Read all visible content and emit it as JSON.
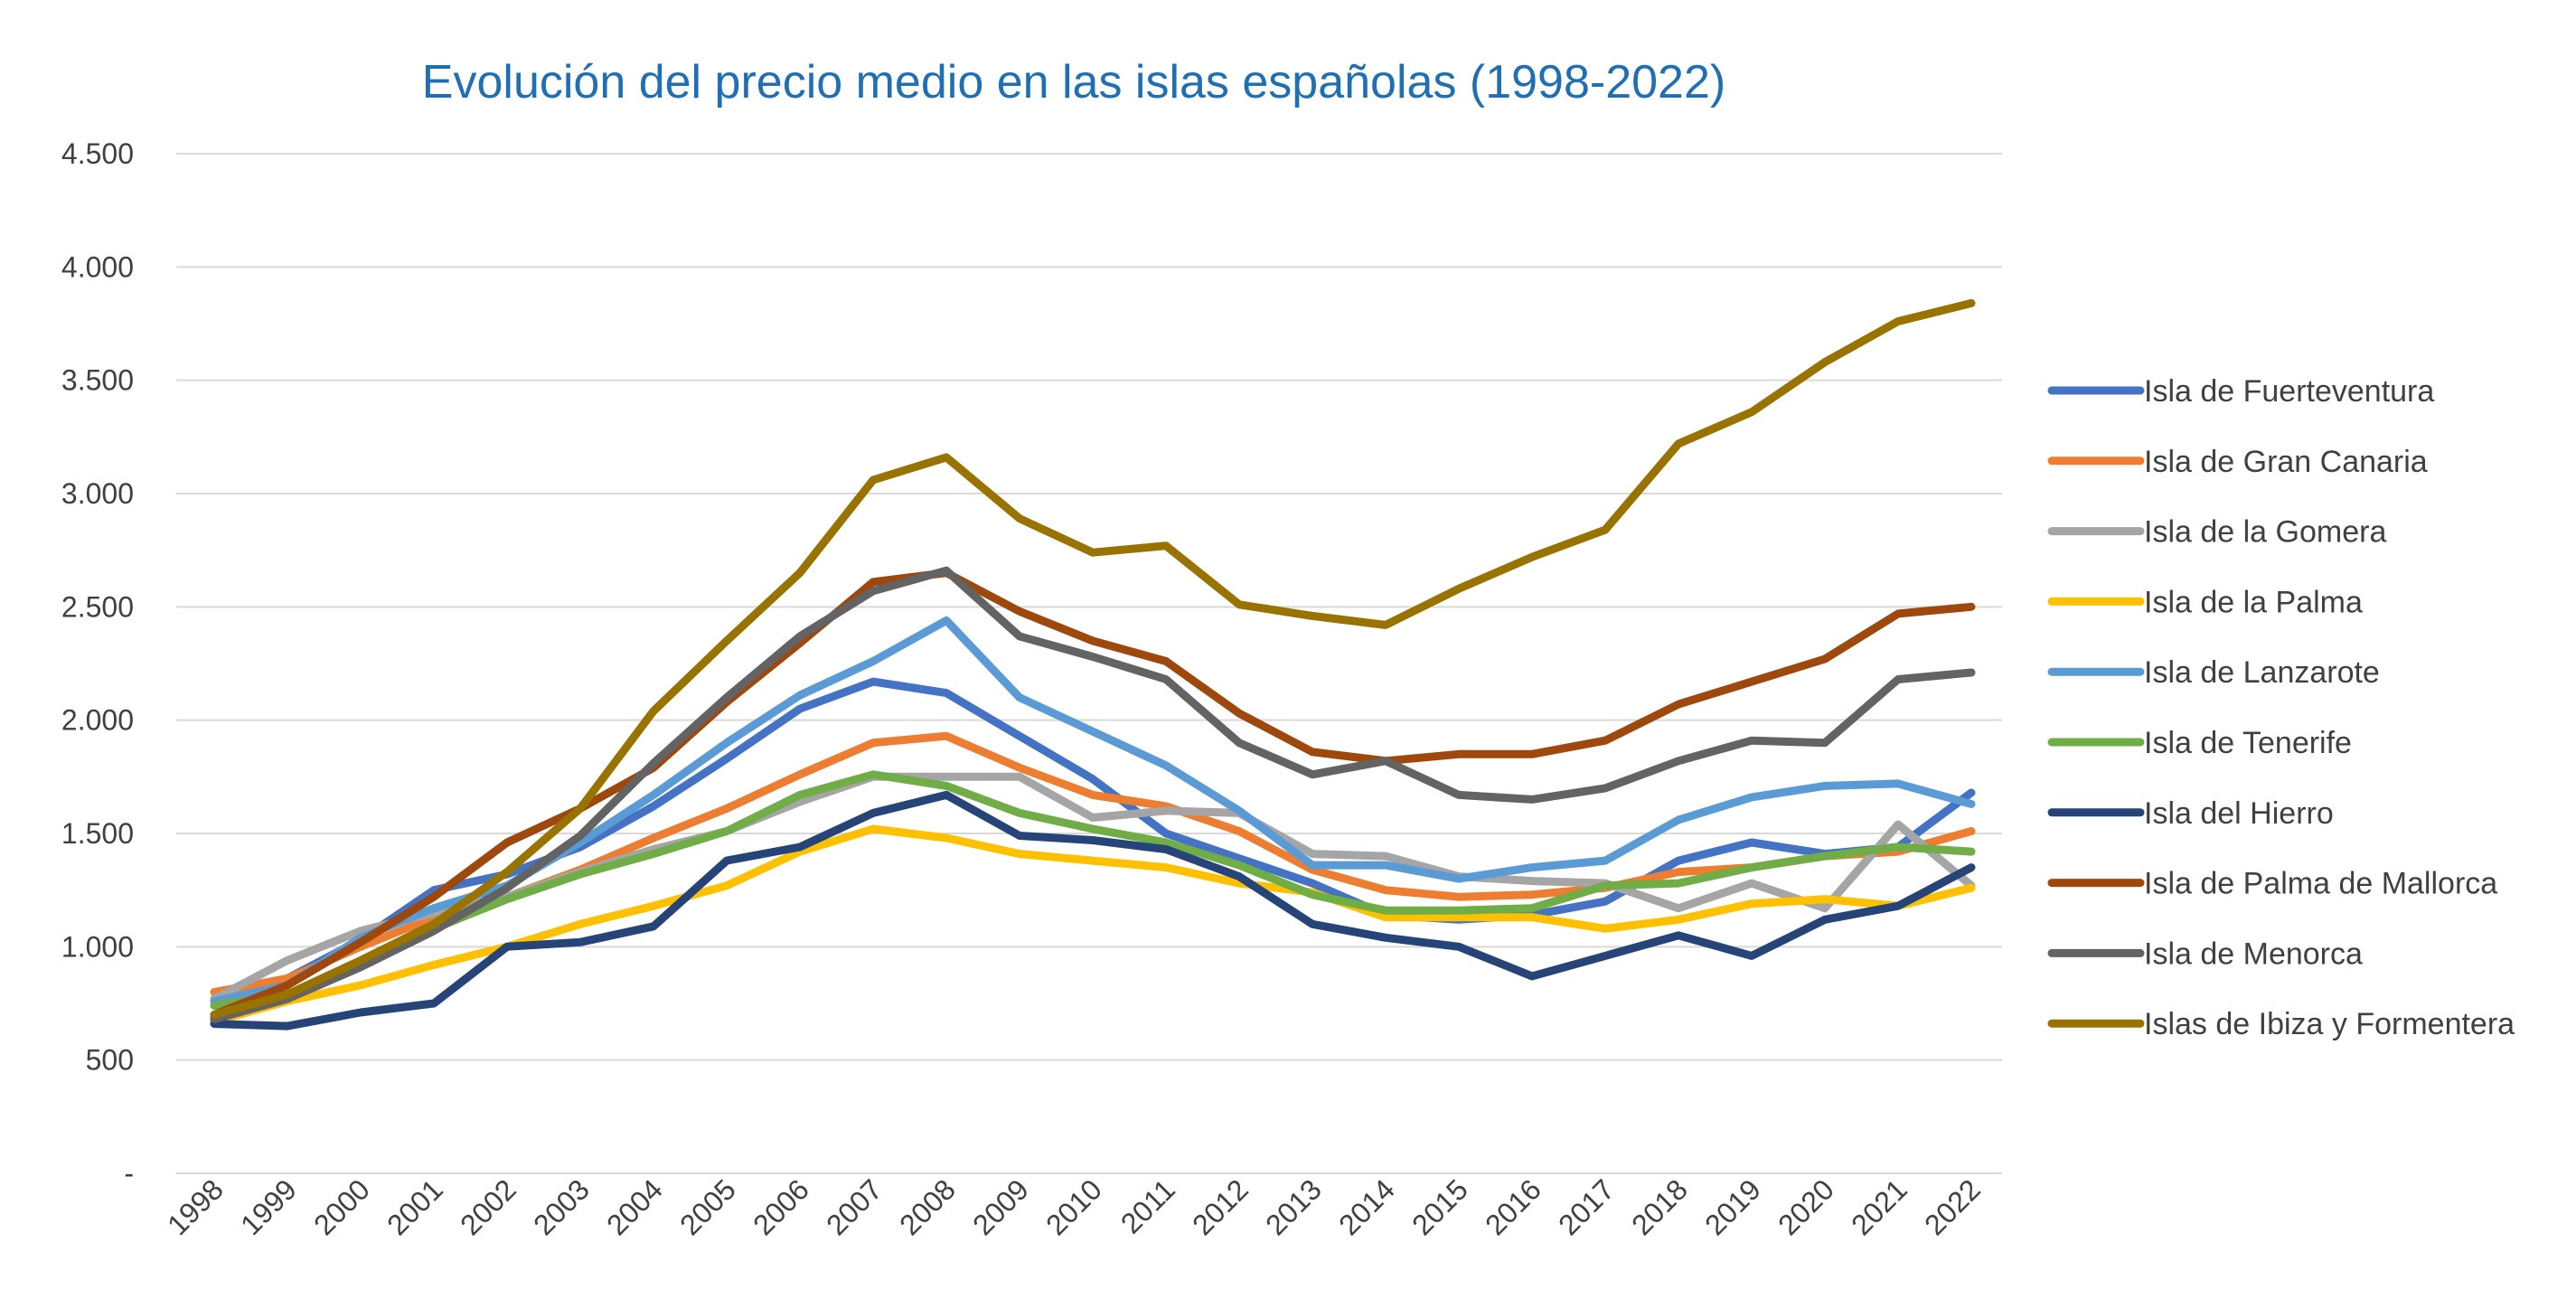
{
  "chart_data": {
    "type": "line",
    "title": "Evolución del precio medio en las islas españolas (1998-2022)",
    "xlabel": "",
    "ylabel": "",
    "categories": [
      "1998",
      "1999",
      "2000",
      "2001",
      "2002",
      "2003",
      "2004",
      "2005",
      "2006",
      "2007",
      "2008",
      "2009",
      "2010",
      "2011",
      "2012",
      "2013",
      "2014",
      "2015",
      "2016",
      "2017",
      "2018",
      "2019",
      "2020",
      "2021",
      "2022"
    ],
    "ylim": [
      0,
      4500
    ],
    "yticks": [
      0,
      500,
      1000,
      1500,
      2000,
      2500,
      3000,
      3500,
      4000,
      4500
    ],
    "ytick_labels": [
      "-",
      "500",
      "1.000",
      "1.500",
      "2.000",
      "2.500",
      "3.000",
      "3.500",
      "4.000",
      "4.500"
    ],
    "grid": true,
    "legend_position": "right",
    "series": [
      {
        "name": "Isla de Fuerteventura",
        "color": "#4472C4",
        "values": [
          690,
          860,
          1030,
          1250,
          1320,
          1440,
          1620,
          1830,
          2050,
          2170,
          2120,
          1930,
          1740,
          1500,
          1390,
          1280,
          1140,
          1120,
          1140,
          1200,
          1380,
          1460,
          1410,
          1440,
          1680
        ]
      },
      {
        "name": "Isla de Gran Canaria",
        "color": "#ED7D31",
        "values": [
          800,
          860,
          1000,
          1130,
          1220,
          1340,
          1480,
          1610,
          1760,
          1900,
          1930,
          1790,
          1670,
          1620,
          1510,
          1340,
          1250,
          1220,
          1230,
          1260,
          1330,
          1350,
          1400,
          1420,
          1510
        ]
      },
      {
        "name": "Isla de la Gomera",
        "color": "#A5A5A5",
        "values": [
          770,
          940,
          1070,
          1150,
          1220,
          1330,
          1430,
          1510,
          1640,
          1750,
          1750,
          1750,
          1570,
          1600,
          1590,
          1410,
          1400,
          1310,
          1290,
          1280,
          1170,
          1280,
          1170,
          1540,
          1270
        ]
      },
      {
        "name": "Isla de la Palma",
        "color": "#FFC000",
        "values": [
          670,
          760,
          830,
          920,
          1000,
          1100,
          1180,
          1270,
          1420,
          1520,
          1480,
          1410,
          1380,
          1350,
          1280,
          1240,
          1130,
          1130,
          1130,
          1080,
          1120,
          1190,
          1210,
          1180,
          1260
        ]
      },
      {
        "name": "Isla de Lanzarote",
        "color": "#5B9BD5",
        "values": [
          760,
          830,
          1040,
          1170,
          1270,
          1460,
          1670,
          1900,
          2110,
          2260,
          2440,
          2100,
          1950,
          1800,
          1600,
          1360,
          1360,
          1300,
          1350,
          1380,
          1560,
          1660,
          1710,
          1720,
          1630
        ]
      },
      {
        "name": "Isla de Tenerife",
        "color": "#70AD47",
        "values": [
          740,
          790,
          920,
          1080,
          1210,
          1320,
          1410,
          1510,
          1670,
          1760,
          1710,
          1590,
          1520,
          1460,
          1360,
          1230,
          1160,
          1160,
          1170,
          1270,
          1280,
          1350,
          1400,
          1440,
          1420
        ]
      },
      {
        "name": "Isla del Hierro",
        "color": "#264478",
        "values": [
          660,
          650,
          710,
          750,
          1000,
          1020,
          1090,
          1380,
          1440,
          1590,
          1670,
          1490,
          1470,
          1430,
          1310,
          1100,
          1040,
          1000,
          870,
          960,
          1050,
          960,
          1120,
          1180,
          1350
        ]
      },
      {
        "name": "Isla de Palma de Mallorca",
        "color": "#9E480E",
        "values": [
          700,
          830,
          1020,
          1220,
          1460,
          1610,
          1790,
          2080,
          2340,
          2610,
          2650,
          2480,
          2350,
          2260,
          2030,
          1860,
          1820,
          1850,
          1850,
          1910,
          2070,
          2170,
          2270,
          2470,
          2500
        ]
      },
      {
        "name": "Isla de Menorca",
        "color": "#636363",
        "values": [
          680,
          770,
          910,
          1070,
          1260,
          1490,
          1810,
          2100,
          2370,
          2570,
          2660,
          2370,
          2280,
          2180,
          1900,
          1760,
          1820,
          1670,
          1650,
          1700,
          1820,
          1910,
          1900,
          2180,
          2210
        ]
      },
      {
        "name": "Islas de Ibiza y Formentera",
        "color": "#997300",
        "values": [
          700,
          790,
          940,
          1100,
          1330,
          1610,
          2040,
          2350,
          2650,
          3060,
          3160,
          2890,
          2740,
          2770,
          2510,
          2460,
          2420,
          2580,
          2720,
          2840,
          3220,
          3360,
          3580,
          3760,
          3840
        ]
      }
    ]
  }
}
